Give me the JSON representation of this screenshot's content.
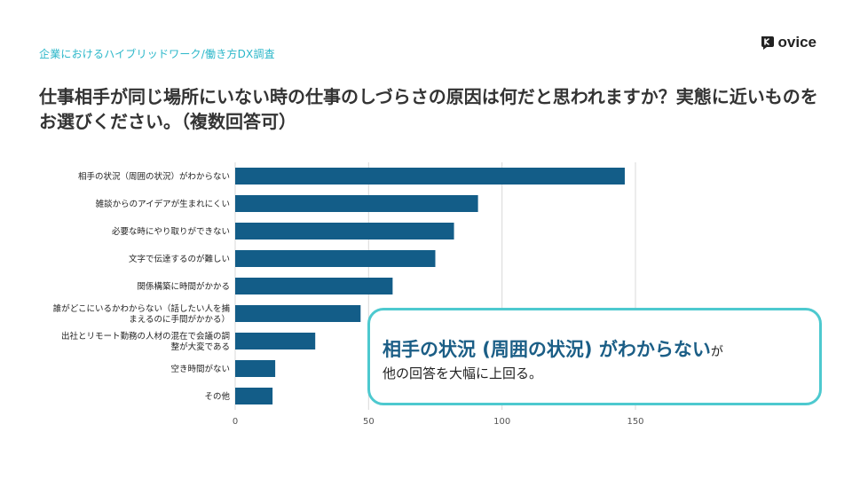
{
  "header": {
    "subtitle": "企業におけるハイブリッドワーク/働き方DX調査",
    "logo_text": "ovice",
    "title": "仕事相手が同じ場所にいない時の仕事のしづらさの原因は何だと思われますか？実態に近いものをお選びください。（複数回答可）"
  },
  "callout": {
    "highlight": "相手の状況 (周囲の状況) がわからない",
    "suffix": "が",
    "line2": "他の回答を大幅に上回る。"
  },
  "chart_data": {
    "type": "bar",
    "orientation": "horizontal",
    "categories": [
      "相手の状況（周囲の状況）がわからない",
      "雑談からのアイデアが生まれにくい",
      "必要な時にやり取りができない",
      "文字で伝達するのが難しい",
      "関係構築に時間がかかる",
      "誰がどこにいるかわからない（話したい人を捕まえるのに手間がかかる）",
      "出社とリモート勤務の人材の混在で会議の調整が大変である",
      "空き時間がない",
      "その他"
    ],
    "category_lines": [
      [
        "相手の状況（周囲の状況）がわからない"
      ],
      [
        "雑談からのアイデアが生まれにくい"
      ],
      [
        "必要な時にやり取りができない"
      ],
      [
        "文字で伝達するのが難しい"
      ],
      [
        "関係構築に時間がかかる"
      ],
      [
        "誰がどこにいるかわからない（話したい人を捕",
        "まえるのに手間がかかる）"
      ],
      [
        "出社とリモート勤務の人材の混在で会議の調",
        "整が大変である"
      ],
      [
        "空き時間がない"
      ],
      [
        "その他"
      ]
    ],
    "values": [
      146,
      91,
      82,
      75,
      59,
      47,
      30,
      15,
      14
    ],
    "xlim": [
      0,
      150
    ],
    "xticks": [
      0,
      50,
      100,
      150
    ],
    "xtick_labels": [
      "0",
      "50",
      "100",
      "150"
    ],
    "bar_color": "#135d88",
    "grid": true
  },
  "colors": {
    "accent": "#2bb7c9",
    "callout_border": "#4dc9cf",
    "highlight": "#1b5e86"
  }
}
